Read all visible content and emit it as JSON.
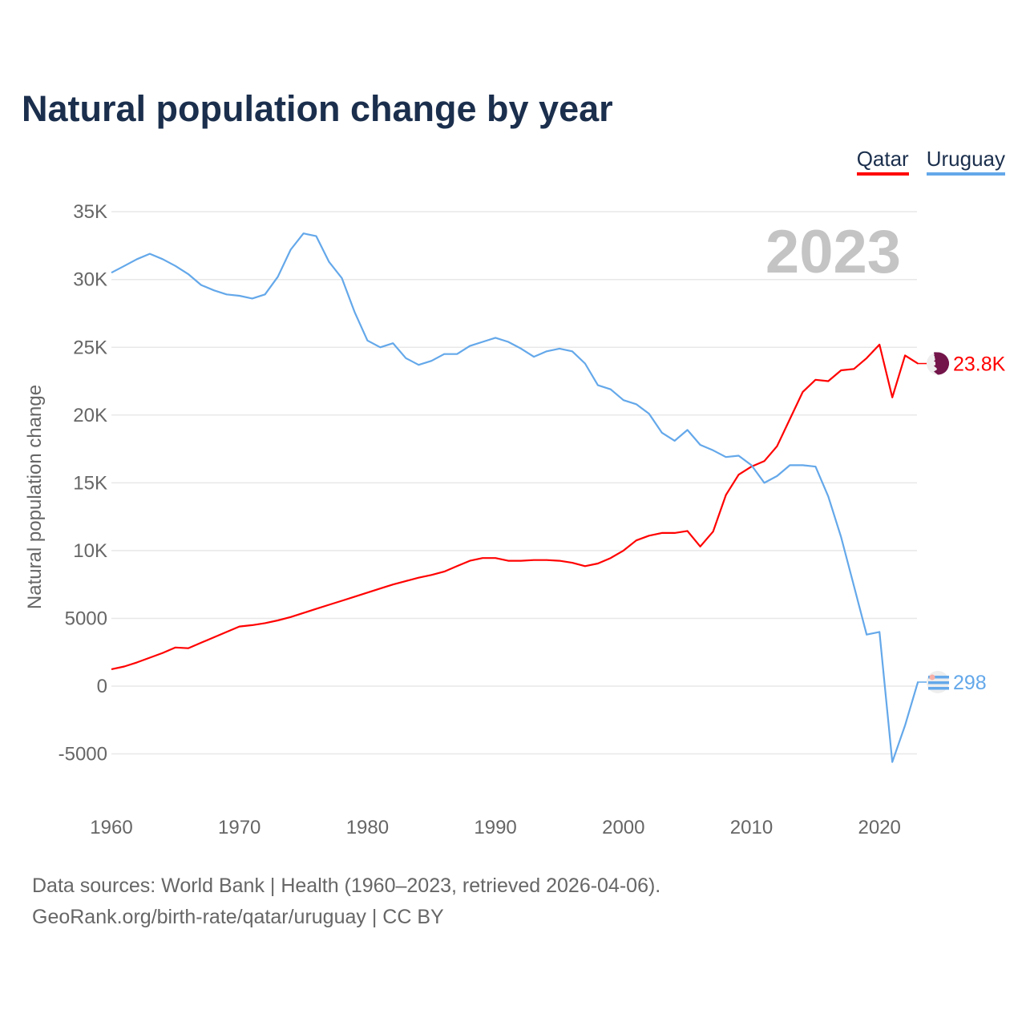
{
  "chart_data": {
    "type": "line",
    "title": "Natural population change by year",
    "xlabel": "",
    "ylabel": "Natural population change",
    "xlim": [
      1960,
      2023
    ],
    "ylim": [
      -7500,
      37000
    ],
    "yticks": [
      {
        "v": 35000,
        "label": "35K"
      },
      {
        "v": 30000,
        "label": "30K"
      },
      {
        "v": 25000,
        "label": "25K"
      },
      {
        "v": 20000,
        "label": "20K"
      },
      {
        "v": 15000,
        "label": "15K"
      },
      {
        "v": 10000,
        "label": "10K"
      },
      {
        "v": 5000,
        "label": "5000"
      },
      {
        "v": 0,
        "label": "0"
      },
      {
        "v": -5000,
        "label": "-5000"
      }
    ],
    "xticks": [
      1960,
      1970,
      1980,
      1990,
      2000,
      2010,
      2020
    ],
    "year_label": "2023",
    "legend_position": "top-right",
    "grid": true,
    "x": [
      1960,
      1961,
      1962,
      1963,
      1964,
      1965,
      1966,
      1967,
      1968,
      1969,
      1970,
      1971,
      1972,
      1973,
      1974,
      1975,
      1976,
      1977,
      1978,
      1979,
      1980,
      1981,
      1982,
      1983,
      1984,
      1985,
      1986,
      1987,
      1988,
      1989,
      1990,
      1991,
      1992,
      1993,
      1994,
      1995,
      1996,
      1997,
      1998,
      1999,
      2000,
      2001,
      2002,
      2003,
      2004,
      2005,
      2006,
      2007,
      2008,
      2009,
      2010,
      2011,
      2012,
      2013,
      2014,
      2015,
      2016,
      2017,
      2018,
      2019,
      2020,
      2021,
      2022,
      2023
    ],
    "series": [
      {
        "name": "Qatar",
        "color": "#ff0000",
        "end_label": "23.8K",
        "values": [
          1250,
          1450,
          1750,
          2100,
          2450,
          2850,
          2800,
          3200,
          3600,
          4000,
          4400,
          4500,
          4650,
          4850,
          5100,
          5400,
          5700,
          6000,
          6300,
          6600,
          6900,
          7200,
          7500,
          7750,
          8000,
          8200,
          8450,
          8850,
          9250,
          9450,
          9450,
          9250,
          9250,
          9300,
          9300,
          9250,
          9100,
          8850,
          9050,
          9450,
          10000,
          10750,
          11100,
          11300,
          11300,
          11450,
          10300,
          11400,
          14100,
          15600,
          16200,
          16600,
          17700,
          19700,
          21700,
          22600,
          22500,
          23300,
          23400,
          24200,
          25200,
          21300,
          24400,
          23800
        ]
      },
      {
        "name": "Uruguay",
        "color": "#64a8ea",
        "end_label": "298",
        "values": [
          30500,
          31000,
          31500,
          31900,
          31500,
          31000,
          30400,
          29600,
          29200,
          28900,
          28800,
          28600,
          28900,
          30200,
          32200,
          33400,
          33200,
          31300,
          30100,
          27600,
          25500,
          25000,
          25300,
          24200,
          23700,
          24000,
          24500,
          24500,
          25100,
          25400,
          25700,
          25400,
          24900,
          24300,
          24700,
          24900,
          24700,
          23800,
          22200,
          21900,
          21100,
          20800,
          20100,
          18700,
          18100,
          18900,
          17800,
          17400,
          16900,
          17000,
          16300,
          15000,
          15500,
          16300,
          16300,
          16200,
          14000,
          11000,
          7400,
          3800,
          4000,
          -5600,
          -2900,
          298
        ]
      }
    ]
  },
  "footer": {
    "line1": "Data sources: World Bank | Health (1960–2023, retrieved 2026-04-06).",
    "line2": "GeoRank.org/birth-rate/qatar/uruguay | CC BY"
  }
}
